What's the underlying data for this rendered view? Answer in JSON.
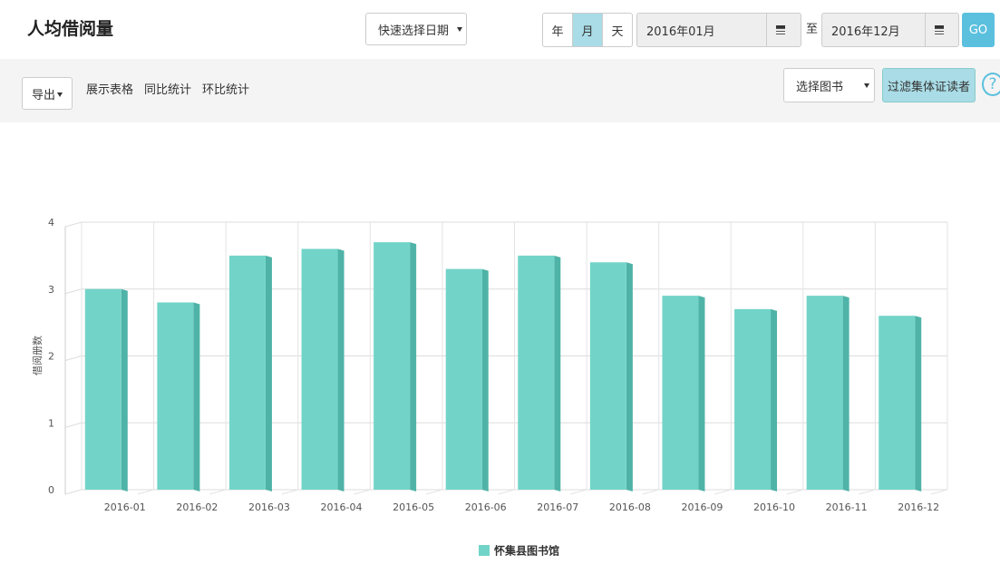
{
  "header": {
    "title": "人均借阅量",
    "quick_date": "快速选择日期",
    "units": [
      "年",
      "月",
      "天"
    ],
    "start": "2016年01月",
    "to": "至",
    "end": "2016年12月",
    "go": "GO"
  },
  "toolbar": {
    "export": "导出",
    "links": [
      "展示表格",
      "同比统计",
      "环比统计"
    ],
    "book_select": "选择图书",
    "filter": "过滤集体证读者",
    "help": "?"
  },
  "chart_data": {
    "type": "bar",
    "y_label": "借阅册数",
    "categories": [
      "2016-01",
      "2016-02",
      "2016-03",
      "2016-04",
      "2016-05",
      "2016-06",
      "2016-07",
      "2016-08",
      "2016-09",
      "2016-10",
      "2016-11",
      "2016-12"
    ],
    "series": [
      {
        "name": "怀集县图书馆",
        "color": "#72d4c8",
        "values": [
          3.0,
          2.8,
          3.5,
          3.6,
          3.7,
          3.3,
          3.5,
          3.4,
          2.9,
          2.7,
          2.9,
          2.6
        ]
      }
    ],
    "ylim": [
      0,
      4
    ],
    "yticks": [
      0,
      1,
      2,
      3,
      4
    ],
    "grid": true
  }
}
